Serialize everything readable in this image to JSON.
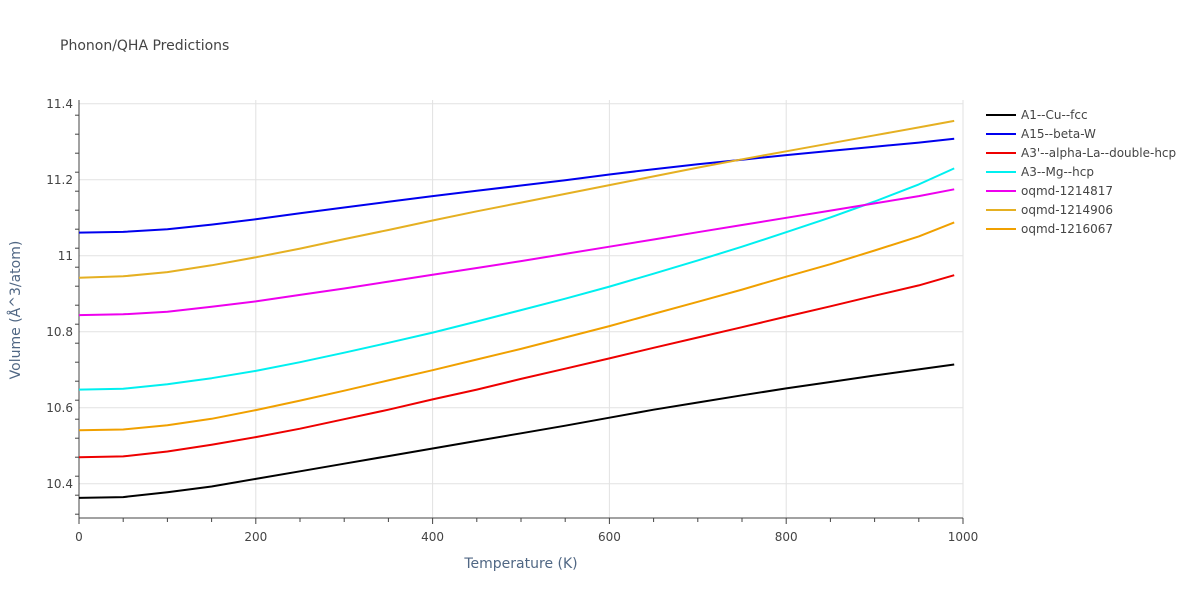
{
  "chart_data": {
    "type": "line",
    "title": "Phonon/QHA Predictions",
    "xlabel": "Temperature (K)",
    "ylabel": "Volume (Å^3/atom)",
    "xlim": [
      0,
      1000
    ],
    "ylim": [
      10.31,
      11.41
    ],
    "x_ticks": [
      0,
      200,
      400,
      600,
      800,
      1000
    ],
    "y_ticks": [
      10.4,
      10.6,
      10.8,
      11,
      11.2,
      11.4
    ],
    "x_tick_labels": [
      "0",
      "200",
      "400",
      "600",
      "800",
      "1000"
    ],
    "y_tick_labels": [
      "10.4",
      "10.6",
      "10.8",
      "11",
      "11.2",
      "11.4"
    ],
    "grid": true,
    "legend_position": "right",
    "x": [
      0,
      50,
      100,
      150,
      200,
      250,
      300,
      350,
      400,
      450,
      500,
      550,
      600,
      650,
      700,
      750,
      800,
      850,
      900,
      950,
      990
    ],
    "series": [
      {
        "name": "A1--Cu--fcc",
        "color": "#000000",
        "values": [
          10.363,
          10.365,
          10.378,
          10.393,
          10.413,
          10.433,
          10.453,
          10.473,
          10.493,
          10.513,
          10.533,
          10.553,
          10.574,
          10.595,
          10.614,
          10.633,
          10.651,
          10.668,
          10.685,
          10.701,
          10.714
        ]
      },
      {
        "name": "A15--beta-W",
        "color": "#0000ee",
        "values": [
          11.061,
          11.063,
          11.07,
          11.082,
          11.096,
          11.112,
          11.127,
          11.142,
          11.157,
          11.171,
          11.185,
          11.199,
          11.214,
          11.228,
          11.241,
          11.253,
          11.265,
          11.276,
          11.287,
          11.298,
          11.308
        ]
      },
      {
        "name": "A3'--alpha-La--double-hcp",
        "color": "#ee0000",
        "values": [
          10.47,
          10.472,
          10.485,
          10.503,
          10.523,
          10.545,
          10.57,
          10.595,
          10.622,
          10.648,
          10.676,
          10.703,
          10.73,
          10.758,
          10.785,
          10.812,
          10.84,
          10.867,
          10.895,
          10.922,
          10.949
        ]
      },
      {
        "name": "A3--Mg--hcp",
        "color": "#00f0f0",
        "values": [
          10.648,
          10.65,
          10.662,
          10.678,
          10.697,
          10.72,
          10.745,
          10.771,
          10.798,
          10.827,
          10.857,
          10.887,
          10.919,
          10.953,
          10.988,
          11.024,
          11.062,
          11.101,
          11.143,
          11.188,
          11.23
        ]
      },
      {
        "name": "oqmd-1214817",
        "color": "#ee00ee",
        "values": [
          10.844,
          10.846,
          10.853,
          10.866,
          10.88,
          10.897,
          10.914,
          10.932,
          10.95,
          10.968,
          10.986,
          11.005,
          11.024,
          11.043,
          11.062,
          11.081,
          11.1,
          11.119,
          11.138,
          11.157,
          11.175
        ]
      },
      {
        "name": "oqmd-1214906",
        "color": "#e5b022",
        "values": [
          10.942,
          10.946,
          10.957,
          10.975,
          10.996,
          11.019,
          11.044,
          11.068,
          11.093,
          11.117,
          11.14,
          11.163,
          11.186,
          11.209,
          11.232,
          11.254,
          11.275,
          11.296,
          11.317,
          11.338,
          11.355
        ]
      },
      {
        "name": "oqmd-1216067",
        "color": "#f0a000",
        "values": [
          10.541,
          10.543,
          10.554,
          10.571,
          10.594,
          10.619,
          10.645,
          10.672,
          10.699,
          10.727,
          10.755,
          10.785,
          10.815,
          10.847,
          10.879,
          10.911,
          10.945,
          10.978,
          11.014,
          11.051,
          11.088
        ]
      }
    ]
  }
}
